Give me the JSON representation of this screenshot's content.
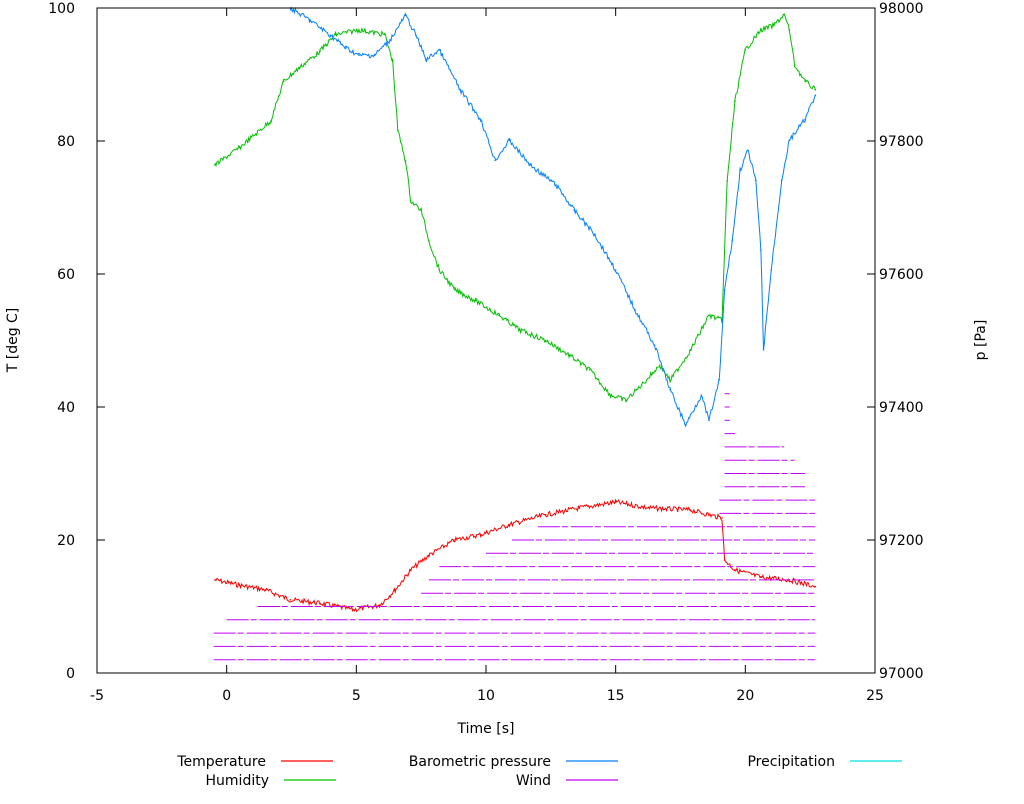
{
  "chart_data": {
    "type": "line",
    "xlabel": "Time [s]",
    "ylabel": "T [deg C]",
    "y2label": "p [Pa]",
    "xlim": [
      -5,
      25
    ],
    "ylim": [
      0,
      100
    ],
    "y2lim": [
      97000,
      98000
    ],
    "xticks": [
      -5,
      0,
      5,
      10,
      15,
      20,
      25
    ],
    "yticks": [
      0,
      20,
      40,
      60,
      80,
      100
    ],
    "y2ticks": [
      97000,
      97200,
      97400,
      97600,
      97800,
      98000
    ],
    "grid": false,
    "legend_placement": "bottom",
    "series": [
      {
        "name": "Temperature",
        "axis": "y",
        "color": "#ff0000",
        "x": [
          -0.45,
          0.5,
          1.5,
          2.45,
          3.6,
          4.9,
          5.9,
          6.5,
          7.1,
          7.8,
          8.8,
          9.8,
          10.9,
          12.3,
          13.6,
          15,
          16.3,
          17.9,
          19.1,
          19.2,
          19.6,
          20.6,
          21.7,
          22.7
        ],
        "y": [
          14,
          13.2,
          12.5,
          11,
          10.5,
          9.5,
          10.2,
          12.5,
          15.5,
          17.7,
          20,
          20.8,
          22.3,
          23.8,
          24.8,
          25.7,
          24.8,
          24.5,
          23.3,
          17,
          15.5,
          14.4,
          14,
          13
        ]
      },
      {
        "name": "Humidity",
        "axis": "y",
        "color": "#00c000",
        "x": [
          -0.45,
          0.5,
          1.7,
          2.2,
          2.8,
          3.6,
          4.2,
          5.1,
          6.1,
          6.4,
          6.6,
          6.9,
          7.1,
          7.5,
          7.8,
          8.2,
          8.8,
          9.6,
          10.5,
          11.3,
          12.3,
          13.2,
          14.0,
          14.8,
          15.4,
          16,
          16.7,
          17.1,
          17.9,
          18.6,
          19.1,
          19.3,
          19.6,
          20,
          20.6,
          21.1,
          21.5,
          21.7,
          21.9,
          22.3,
          22.7
        ],
        "y": [
          76.4,
          79,
          83,
          89,
          91,
          93.5,
          96,
          96.7,
          96,
          92,
          81.6,
          77,
          71,
          69.6,
          65,
          60.6,
          57.6,
          56,
          53.8,
          51.6,
          50,
          47.8,
          45.6,
          41.8,
          41,
          43.3,
          46.3,
          44,
          48.6,
          53.8,
          53,
          74,
          86,
          93.7,
          96.7,
          97.4,
          99,
          96.7,
          91.4,
          89,
          87.7
        ]
      },
      {
        "name": "Barometric pressure",
        "axis": "y2",
        "color": "#0080ff",
        "x": [
          2.45,
          3.2,
          4.0,
          4.6,
          5.1,
          5.7,
          6.3,
          6.9,
          7.3,
          7.7,
          8.2,
          9.0,
          9.8,
          10.35,
          10.9,
          11.7,
          12.7,
          13.4,
          14.2,
          15.0,
          15.75,
          16.5,
          17.1,
          17.7,
          18.3,
          18.6,
          19.0,
          19.2,
          19.5,
          19.8,
          20.1,
          20.4,
          20.6,
          20.7,
          21.0,
          21.4,
          21.7,
          22.3,
          22.7
        ],
        "y": [
          98000,
          97982,
          97959,
          97940,
          97929,
          97929,
          97952,
          97989,
          97959,
          97922,
          97937,
          97877,
          97832,
          97771,
          97801,
          97764,
          97734,
          97696,
          97659,
          97606,
          97546,
          97493,
          97426,
          97373,
          97418,
          97380,
          97441,
          97576,
          97651,
          97756,
          97786,
          97741,
          97636,
          97486,
          97606,
          97741,
          97801,
          97832,
          97869
        ]
      },
      {
        "name": "Wind",
        "axis": "y",
        "color": "#c000ff",
        "levels": [
          {
            "y": 2,
            "x": [
              -0.5,
              22.7
            ]
          },
          {
            "y": 4,
            "x": [
              -0.5,
              22.7
            ]
          },
          {
            "y": 6,
            "x": [
              -0.5,
              22.7
            ]
          },
          {
            "y": 8,
            "x": [
              0,
              22.7
            ]
          },
          {
            "y": 10,
            "x": [
              1.2,
              22.7
            ]
          },
          {
            "y": 12,
            "x": [
              7.5,
              22.7
            ]
          },
          {
            "y": 14,
            "x": [
              7.8,
              22.7
            ]
          },
          {
            "y": 16,
            "x": [
              8.2,
              22.7
            ]
          },
          {
            "y": 18,
            "x": [
              10,
              22.7
            ]
          },
          {
            "y": 20,
            "x": [
              11,
              22.7
            ]
          },
          {
            "y": 22,
            "x": [
              12,
              22.7
            ]
          },
          {
            "y": 24,
            "x": [
              19,
              22.7
            ]
          },
          {
            "y": 26,
            "x": [
              19,
              22.7
            ]
          },
          {
            "y": 28,
            "x": [
              19.2,
              22.3
            ]
          },
          {
            "y": 30,
            "x": [
              19.2,
              22.3
            ]
          },
          {
            "y": 32,
            "x": [
              19.2,
              21.9
            ]
          },
          {
            "y": 34,
            "x": [
              19.2,
              21.5
            ]
          },
          {
            "y": 36,
            "x": [
              19.2,
              19.6
            ]
          },
          {
            "y": 38,
            "x": [
              19.2,
              19.4
            ]
          },
          {
            "y": 40,
            "x": [
              19.2,
              19.4
            ]
          },
          {
            "y": 42,
            "x": [
              19.2,
              19.4
            ]
          }
        ]
      },
      {
        "name": "Precipitation",
        "axis": "y",
        "color": "#00e0e0",
        "x": [],
        "y": []
      }
    ]
  }
}
